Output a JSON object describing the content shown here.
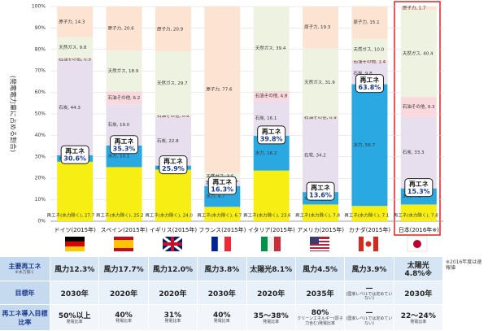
{
  "chart_data": {
    "type": "stacked_bar",
    "y_axis_label": "(発電電力量に占める割合)",
    "categories": [
      "ドイツ(2015年)",
      "スペイン(2015年)",
      "イギリス(2015年)",
      "フランス(2015年)",
      "イタリア(2015年)",
      "アメリカ(2015年)",
      "カナダ(2015年)",
      "日本(2016年※)"
    ],
    "ylim": [
      0,
      100
    ],
    "yticks": [
      {
        "value": 0,
        "label": "0%"
      },
      {
        "value": 10,
        "label": "10%"
      },
      {
        "value": 20,
        "label": "20%"
      },
      {
        "value": 30,
        "label": "30%"
      },
      {
        "value": 40,
        "label": "40%"
      },
      {
        "value": 50,
        "label": "50%"
      },
      {
        "value": 60,
        "label": "60%"
      },
      {
        "value": 70,
        "label": "70%"
      },
      {
        "value": 80,
        "label": "80%"
      },
      {
        "value": 90,
        "label": "90%"
      },
      {
        "value": 100,
        "label": "100%"
      }
    ],
    "series": [
      {
        "name": "再エネ(水力除く)",
        "color": "#f7ee14",
        "values": [
          27.7,
          25.2,
          24.0,
          6.7,
          23.6,
          7.8,
          7.1,
          7.8
        ],
        "value_labels": [
          "再エネ(水力除く), 27.7",
          "再エネ(水力除く), 25.2",
          "再エネ(水力除く), 24.0",
          "再エネ(水力除く), 6.7",
          "再エネ(水力除く), 23.6",
          "再エネ(水力除く), 7.8",
          "再エネ(水力除く), 7.1",
          "再エネ(水力除く), 7.8"
        ]
      },
      {
        "name": "水力",
        "color": "#2aa8e2",
        "values": [
          3.0,
          10.1,
          1.9,
          9.7,
          16.2,
          5.8,
          56.7,
          7.5
        ],
        "value_labels": [
          "水力, 3.0",
          "水力, 10.1",
          "水力, 1.9",
          "水力, 9.7",
          "水力, 16.2",
          "水力, 5.8",
          "水力, 56.7",
          "水力, 7.5"
        ]
      },
      {
        "name": "石炭",
        "color": "#e8dfee",
        "values": [
          44.3,
          19.0,
          22.8,
          2.2,
          16.1,
          34.2,
          9.8,
          33.3
        ],
        "value_labels": [
          "石炭, 44.3",
          "石炭, 19.0",
          "石炭, 22.8",
          "石炭, 2.2",
          "石炭, 16.1",
          "石炭, 34.2",
          "石炭, 9.8",
          "石炭, 33.3"
        ]
      },
      {
        "name": "石油その他",
        "color": "#f9d9dd",
        "values": [
          0.9,
          6.2,
          0.6,
          0.4,
          4.8,
          0.9,
          1.4,
          9.3
        ],
        "value_labels": [
          "石油その他, 0.9",
          "石油その他, 6.2",
          "石油その他, 0.6",
          "石油その他, 0.4",
          "石油その他, 4.8",
          "石油その他, 0.9",
          "石油その他, 1.4",
          "石油その他, 9.3"
        ]
      },
      {
        "name": "天然ガス",
        "color": "#eef3e1",
        "values": [
          9.8,
          18.9,
          29.7,
          3.5,
          39.4,
          31.9,
          10.0,
          40.4
        ],
        "value_labels": [
          "天然ガス, 9.8",
          "天然ガス, 18.9",
          "天然ガス, 29.7",
          "天然ガス, 3.5",
          "天然ガス, 39.4",
          "天然ガス, 31.9",
          "天然ガス, 10.0",
          "天然ガス, 40.4"
        ]
      },
      {
        "name": "原子力",
        "color": "#fde4d2",
        "values": [
          14.3,
          20.6,
          20.9,
          77.6,
          0,
          19.3,
          15.1,
          1.7
        ],
        "value_labels": [
          "原子力, 14.3",
          "原子力, 20.6",
          "原子力, 20.9",
          "原子力, 77.6",
          null,
          "原子力, 19.3",
          "原子力, 15.1",
          "原子力, 1.7"
        ]
      }
    ],
    "callout_title": "再エネ",
    "callouts": [
      {
        "value": 30.6,
        "label": "30.6%"
      },
      {
        "value": 35.3,
        "label": "35.3%"
      },
      {
        "value": 25.9,
        "label": "25.9%"
      },
      {
        "value": 16.3,
        "label": "16.3%"
      },
      {
        "value": 39.8,
        "label": "39.8%"
      },
      {
        "value": 13.6,
        "label": "13.6%"
      },
      {
        "value": 63.8,
        "label": "63.8%"
      },
      {
        "value": 15.3,
        "label": "15.3%"
      }
    ]
  },
  "table": {
    "row_headers": [
      {
        "title": "主要再エネ",
        "note": "※水力除く"
      },
      {
        "title": "目標年"
      },
      {
        "title": "再エネ導入目標比率"
      }
    ],
    "rows": [
      [
        {
          "main": "風力12.3%"
        },
        {
          "main": "風力17.7%"
        },
        {
          "main": "風力12.0%"
        },
        {
          "main": "風力3.8%"
        },
        {
          "main": "太陽光8.1%"
        },
        {
          "main": "風力4.5%"
        },
        {
          "main": "風力3.9%"
        },
        {
          "main": "太陽光4.8%※"
        }
      ],
      [
        {
          "main": "2030年"
        },
        {
          "main": "2020年"
        },
        {
          "main": "2020年"
        },
        {
          "main": "2030年"
        },
        {
          "main": "2020年"
        },
        {
          "main": "2035年"
        },
        {
          "main": "—",
          "sub": "(国家レベルでは定めていない)"
        },
        {
          "main": "2030年"
        }
      ],
      [
        {
          "main": "50%以上",
          "sub": "発電比率"
        },
        {
          "main": "40%",
          "sub": "発電比率"
        },
        {
          "main": "31%",
          "sub": "発電比率"
        },
        {
          "main": "40%",
          "sub": "発電比率"
        },
        {
          "main": "35～38%",
          "sub": "発電比率"
        },
        {
          "main": "80%",
          "sub": "クリーンエネルギー(原子力含む)発電比率"
        },
        {
          "main": "—",
          "sub": "(国家レベルでは定めていない)"
        },
        {
          "main": "22～24%",
          "sub": "発電比率"
        }
      ]
    ],
    "note": "※2016年度は速報値"
  }
}
